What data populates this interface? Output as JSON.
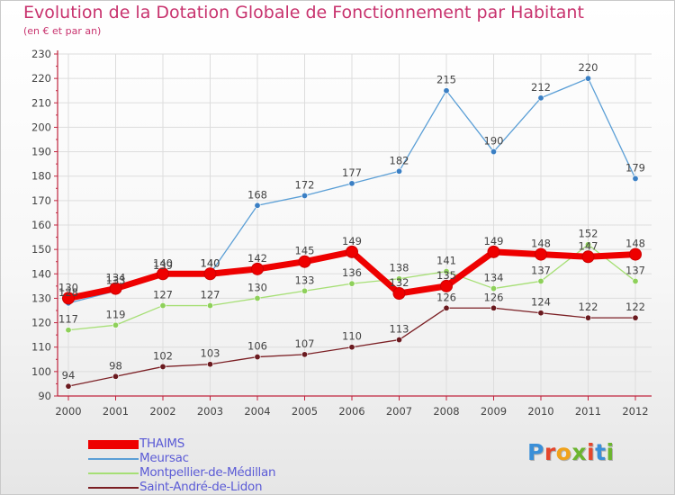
{
  "title": "Evolution de la Dotation Globale de Fonctionnement par Habitant",
  "subtitle": "(en € et par an)",
  "logo": "Proxiti",
  "colors": {
    "title": "#c8336e",
    "axis": "#c0243e",
    "grid": "#dddddd",
    "legend_text": "#5b5bd6",
    "logo": [
      "#3a8fd8",
      "#e5462c",
      "#f0a21b",
      "#6bb52f",
      "#e5462c",
      "#3a8fd8",
      "#6bb52f"
    ]
  },
  "chart_data": {
    "type": "line",
    "title": "Evolution de la Dotation Globale de Fonctionnement par Habitant",
    "subtitle": "(en € et par an)",
    "xlabel": "",
    "ylabel": "",
    "x": [
      "2000",
      "2001",
      "2002",
      "2003",
      "2004",
      "2005",
      "2006",
      "2007",
      "2008",
      "2009",
      "2010",
      "2011",
      "2012"
    ],
    "ylim": [
      90,
      230
    ],
    "yticks": [
      90,
      100,
      110,
      120,
      130,
      140,
      150,
      160,
      170,
      180,
      190,
      200,
      210,
      220,
      230
    ],
    "grid": true,
    "legend_position": "bottom-left",
    "series": [
      {
        "name": "THAIMS",
        "color": "#ee0000",
        "marker": "#ee0000",
        "emphasis": true,
        "values": [
          130,
          134,
          140,
          140,
          142,
          145,
          149,
          132,
          135,
          149,
          148,
          147,
          148
        ],
        "labels": [
          "130",
          "134",
          "140",
          "140",
          "142",
          "145",
          "149",
          "132",
          "135",
          "149",
          "148",
          "147",
          "148"
        ]
      },
      {
        "name": "Meursac",
        "color": "#5b9fd6",
        "marker": "#3a7fc4",
        "values": [
          128,
          133,
          139,
          140,
          168,
          172,
          177,
          182,
          215,
          190,
          212,
          220,
          179
        ],
        "labels": [
          "128",
          "133",
          "139",
          "140",
          "168",
          "172",
          "177",
          "182",
          "215",
          "190",
          "212",
          "220",
          "179"
        ]
      },
      {
        "name": "Montpellier-de-Médillan",
        "color": "#a6df75",
        "marker": "#8ed05a",
        "values": [
          117,
          119,
          127,
          127,
          130,
          133,
          136,
          138,
          141,
          134,
          137,
          152,
          137
        ],
        "labels": [
          "117",
          "119",
          "127",
          "127",
          "130",
          "133",
          "136",
          "138",
          "141",
          "134",
          "137",
          "152",
          "137"
        ]
      },
      {
        "name": "Saint-André-de-Lidon",
        "color": "#7b1f24",
        "marker": "#6a1a1f",
        "values": [
          94,
          98,
          102,
          103,
          106,
          107,
          110,
          113,
          126,
          126,
          124,
          122,
          122
        ],
        "labels": [
          "94",
          "98",
          "102",
          "103",
          "106",
          "107",
          "110",
          "113",
          "126",
          "126",
          "124",
          "122",
          "122"
        ]
      }
    ]
  }
}
